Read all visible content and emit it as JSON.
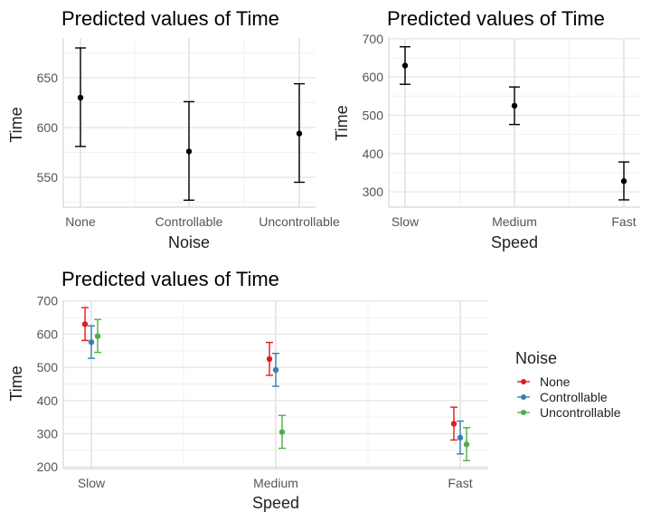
{
  "chart_data": [
    {
      "type": "scatter",
      "title": "Predicted values of Time",
      "xlabel": "Noise",
      "ylabel": "Time",
      "categories": [
        "None",
        "Controllable",
        "Uncontrollable"
      ],
      "series": [
        {
          "color": "#000000",
          "values": [
            630,
            576,
            594
          ],
          "lower": [
            581,
            527,
            545
          ],
          "upper": [
            680,
            626,
            644
          ]
        }
      ],
      "yticks": [
        550,
        600,
        650
      ],
      "ylim": [
        520,
        690
      ],
      "grid": true
    },
    {
      "type": "scatter",
      "title": "Predicted values of Time",
      "xlabel": "Speed",
      "ylabel": "Time",
      "categories": [
        "Slow",
        "Medium",
        "Fast"
      ],
      "series": [
        {
          "color": "#000000",
          "values": [
            630,
            525,
            328
          ],
          "lower": [
            581,
            476,
            279
          ],
          "upper": [
            679,
            574,
            378
          ]
        }
      ],
      "yticks": [
        300,
        400,
        500,
        600,
        700
      ],
      "ylim": [
        260,
        702
      ],
      "grid": true
    },
    {
      "type": "scatter",
      "title": "Predicted values of Time",
      "xlabel": "Speed",
      "ylabel": "Time",
      "categories": [
        "Slow",
        "Medium",
        "Fast"
      ],
      "series": [
        {
          "name": "None",
          "color": "#e41a1c",
          "values": [
            630,
            525,
            330
          ],
          "lower": [
            581,
            476,
            281
          ],
          "upper": [
            680,
            575,
            380
          ]
        },
        {
          "name": "Controllable",
          "color": "#377eb8",
          "values": [
            576,
            492,
            288
          ],
          "lower": [
            527,
            443,
            239
          ],
          "upper": [
            625,
            542,
            338
          ]
        },
        {
          "name": "Uncontrollable",
          "color": "#4daf4a",
          "values": [
            594,
            305,
            268
          ],
          "lower": [
            545,
            256,
            219
          ],
          "upper": [
            644,
            355,
            318
          ]
        }
      ],
      "legend_title": "Noise",
      "legend_position": "right",
      "yticks": [
        200,
        300,
        400,
        500,
        600,
        700
      ],
      "ylim": [
        195,
        702
      ],
      "grid": true
    }
  ]
}
